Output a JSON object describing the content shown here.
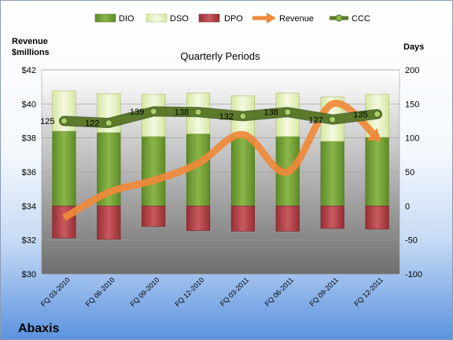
{
  "chart_data": {
    "type": "bar",
    "title": "Quarterly Periods",
    "company": "Abaxis",
    "left_axis_label": [
      "Revenue",
      "$millions"
    ],
    "right_axis_label": "Days",
    "left_ylim": [
      30,
      42
    ],
    "left_ticks": [
      "$30",
      "$32",
      "$34",
      "$36",
      "$38",
      "$40",
      "$42"
    ],
    "right_ylim": [
      -100,
      200
    ],
    "right_ticks": [
      "-100",
      "-50",
      "0",
      "50",
      "100",
      "150",
      "200"
    ],
    "categories": [
      "FQ 03-2010",
      "FQ 06-2010",
      "FQ 09-2010",
      "FQ 12-2010",
      "FQ 03-2011",
      "FQ 06-2011",
      "FQ 09-2011",
      "FQ 12-2011"
    ],
    "legend": [
      "DIO",
      "DSO",
      "DPO",
      "Revenue",
      "CCC"
    ],
    "series": [
      {
        "name": "DIO",
        "axis": "days",
        "values": [
          110,
          108,
          102,
          106,
          102,
          102,
          95,
          101
        ]
      },
      {
        "name": "DSO",
        "axis": "days",
        "values": [
          59,
          57,
          62,
          60,
          60,
          64,
          65,
          63
        ]
      },
      {
        "name": "DPO",
        "axis": "days",
        "values": [
          -47,
          -49,
          -30,
          -36,
          -37,
          -37,
          -33,
          -34
        ]
      },
      {
        "name": "Revenue",
        "axis": "revenue",
        "values": [
          33.3,
          34.8,
          35.5,
          36.5,
          38.2,
          36.0,
          40.0,
          38.0
        ]
      },
      {
        "name": "CCC",
        "axis": "days",
        "values": [
          125,
          122,
          139,
          138,
          132,
          138,
          127,
          135
        ]
      }
    ],
    "ccc_labels": [
      "125",
      "122",
      "139",
      "138",
      "132",
      "138",
      "127",
      "135"
    ],
    "colors": {
      "DIO": "#7aa33c",
      "DSO": "#e9f3c5",
      "DPO": "#b8454a",
      "Revenue": "#f0893a",
      "CCC": "#5c7a2b",
      "plot_top": "#ffffff",
      "plot_bottom": "#6e6e6e"
    }
  }
}
